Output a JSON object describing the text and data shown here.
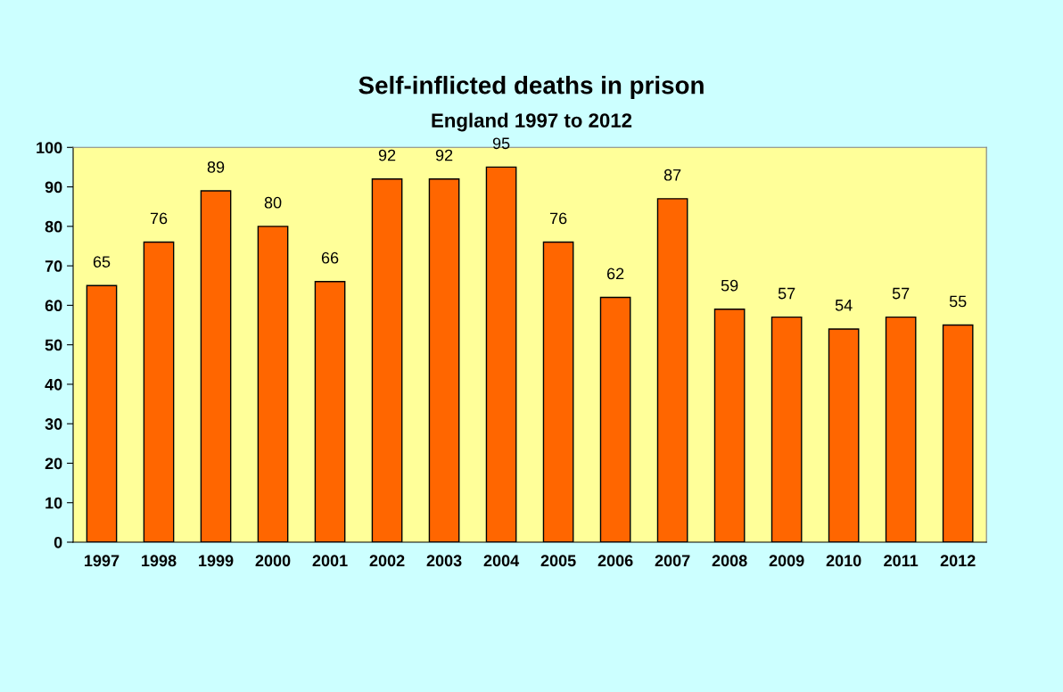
{
  "chart_data": {
    "type": "bar",
    "title": "Self-inflicted deaths in prison",
    "subtitle": "England 1997 to 2012",
    "categories": [
      "1997",
      "1998",
      "1999",
      "2000",
      "2001",
      "2002",
      "2003",
      "2004",
      "2005",
      "2006",
      "2007",
      "2008",
      "2009",
      "2010",
      "2011",
      "2012"
    ],
    "values": [
      65,
      76,
      89,
      80,
      66,
      92,
      92,
      95,
      76,
      62,
      87,
      59,
      57,
      54,
      57,
      55
    ],
    "color": "#ff6600",
    "ylim": [
      0,
      100
    ],
    "yticks": [
      0,
      10,
      20,
      30,
      40,
      50,
      60,
      70,
      80,
      90,
      100
    ],
    "data_labels": true,
    "grid": false
  }
}
